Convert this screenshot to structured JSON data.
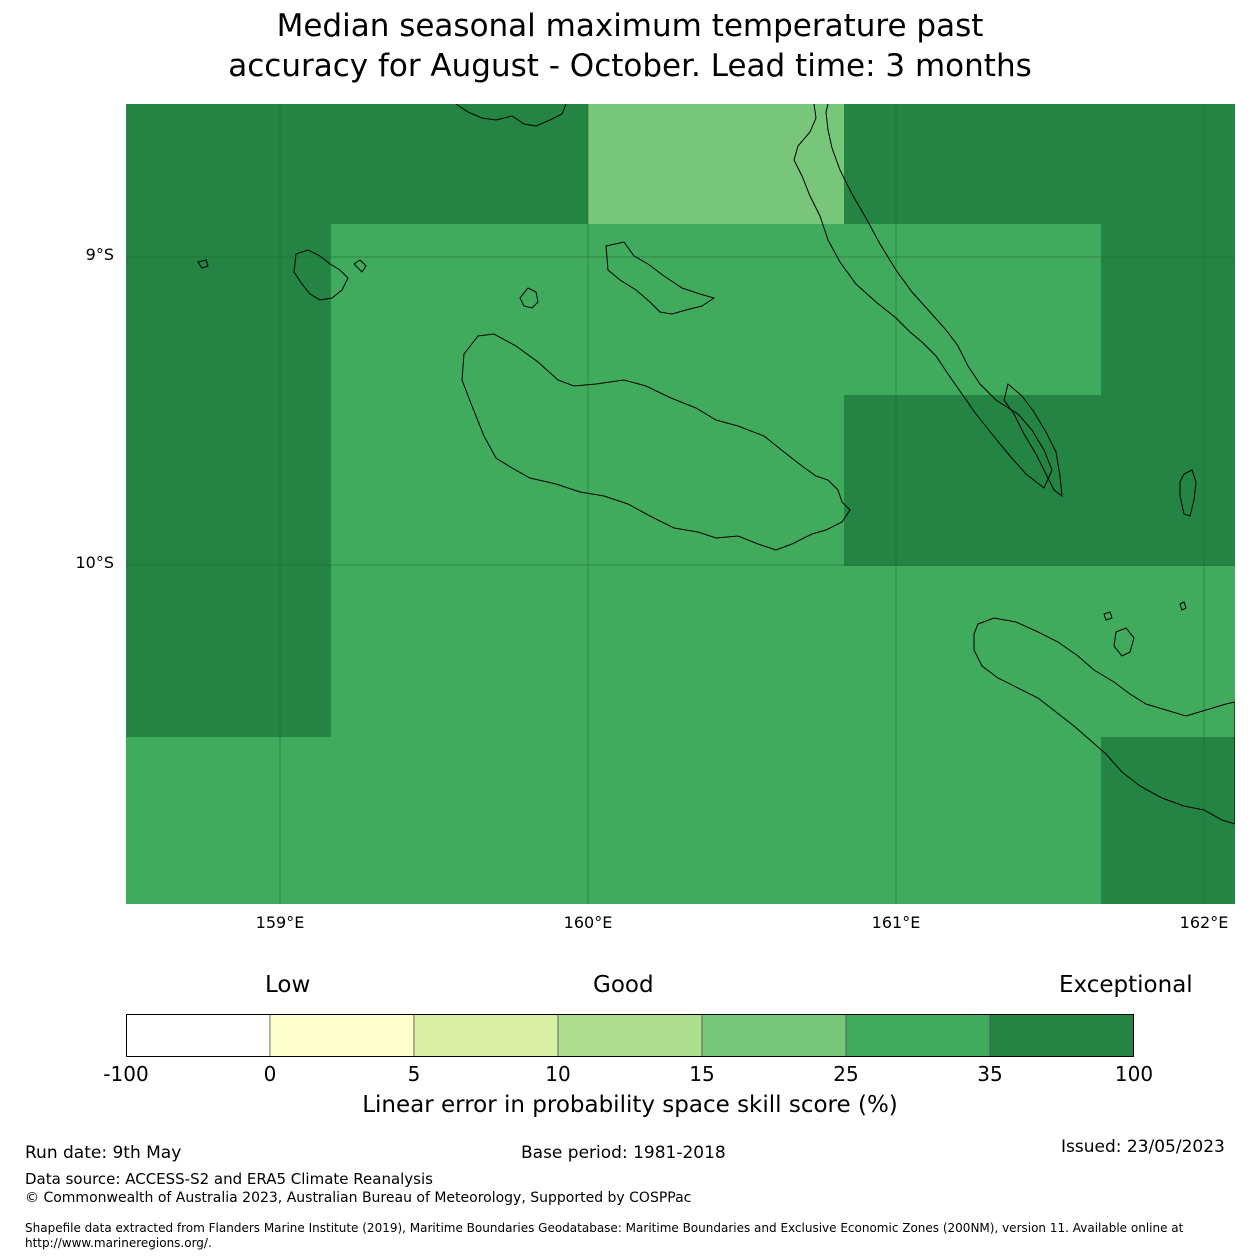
{
  "title": {
    "line1": "Median seasonal maximum temperature past",
    "line2": "accuracy for August - October. Lead time: 3 months"
  },
  "map": {
    "lon_range": [
      158.5,
      162.1
    ],
    "lat_range": [
      -11.1,
      -8.5
    ],
    "lat_labels": [
      "9°S",
      "10°S"
    ],
    "lon_labels": [
      "159°E",
      "160°E",
      "161°E",
      "162°E"
    ],
    "grid_colors": {
      "exceptional": "#238443",
      "very_good": "#41ab5d",
      "good": "#78c679"
    }
  },
  "colorbar": {
    "categories": [
      "Low",
      "Good",
      "Exceptional"
    ],
    "ticks": [
      "-100",
      "0",
      "5",
      "10",
      "15",
      "25",
      "35",
      "100"
    ],
    "colors": [
      "#ffffff",
      "#ffffcc",
      "#d9f0a3",
      "#addd8e",
      "#78c679",
      "#41ab5d",
      "#238443"
    ],
    "label": "Linear error in probability space skill score (%)"
  },
  "footer": {
    "run_date": "Run date: 9th May",
    "base_period": "Base period: 1981-2018",
    "issued": "Issued: 23/05/2023",
    "data_source": "Data source: ACCESS-S2 and ERA5 Climate Reanalysis",
    "copyright": "© Commonwealth of Australia 2023, Australian Bureau of Meteorology, Supported by COSPPac",
    "shapefile_line1": "Shapefile data extracted from Flanders Marine Institute (2019), Maritime Boundaries Geodatabase: Maritime Boundaries and Exclusive Economic Zones (200NM), version 11. Available online at",
    "shapefile_line2": "http://www.marineregions.org/."
  }
}
